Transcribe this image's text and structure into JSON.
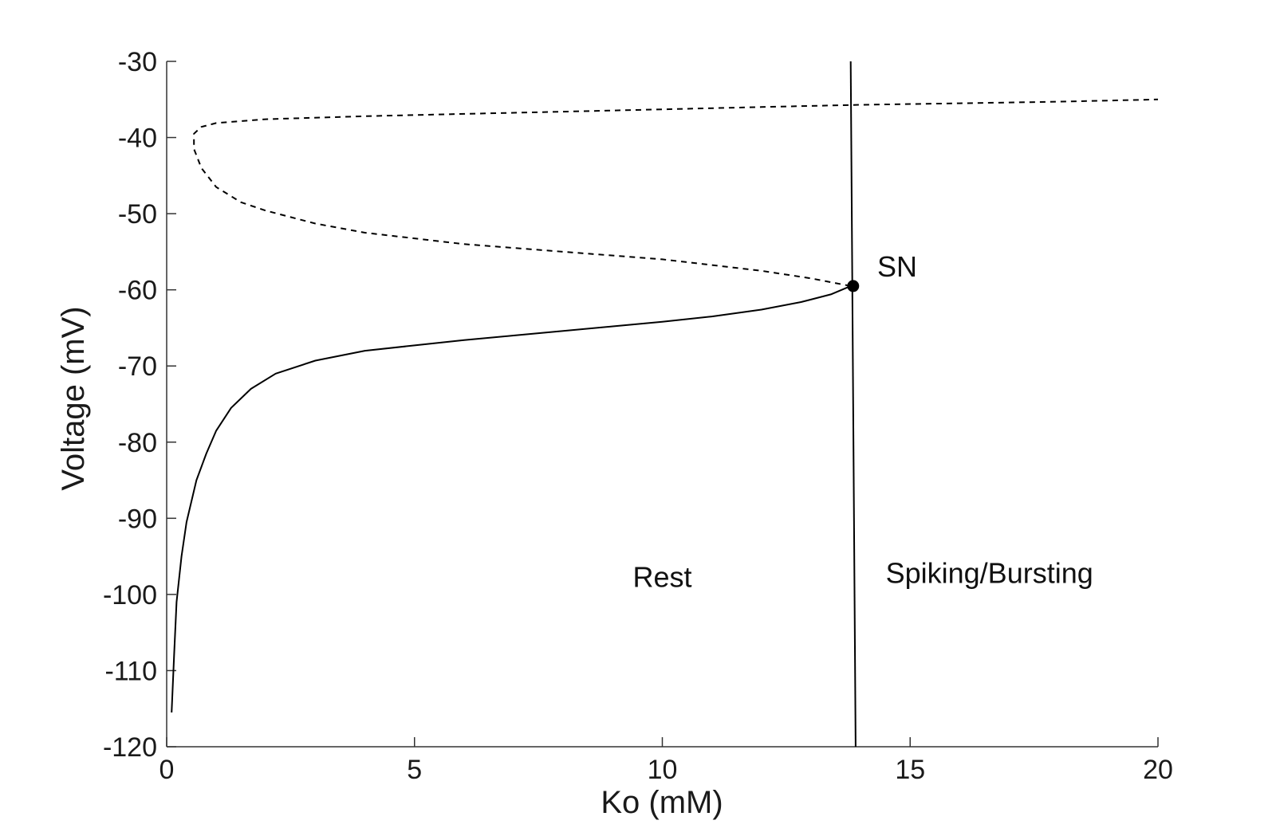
{
  "chart_data": {
    "type": "line",
    "xlabel": "Ko (mM)",
    "ylabel": "Voltage (mV)",
    "xlim": [
      0,
      20
    ],
    "ylim": [
      -120,
      -30
    ],
    "xticks": [
      0,
      5,
      10,
      15,
      20
    ],
    "yticks": [
      -30,
      -40,
      -50,
      -60,
      -70,
      -80,
      -90,
      -100,
      -110,
      -120
    ],
    "grid": false,
    "colors": {
      "line": "#000000",
      "axis": "#333333",
      "text": "#1a1a1a"
    },
    "series": [
      {
        "style": "solid",
        "points": [
          [
            0.1,
            -115.5
          ],
          [
            0.15,
            -108
          ],
          [
            0.2,
            -101
          ],
          [
            0.3,
            -95
          ],
          [
            0.4,
            -90.5
          ],
          [
            0.6,
            -85
          ],
          [
            0.8,
            -81.5
          ],
          [
            1.0,
            -78.5
          ],
          [
            1.3,
            -75.5
          ],
          [
            1.7,
            -73
          ],
          [
            2.2,
            -71
          ],
          [
            3,
            -69.3
          ],
          [
            4,
            -68
          ],
          [
            5,
            -67.3
          ],
          [
            6,
            -66.6
          ],
          [
            7,
            -66
          ],
          [
            8,
            -65.4
          ],
          [
            9,
            -64.8
          ],
          [
            10,
            -64.2
          ],
          [
            11,
            -63.5
          ],
          [
            12,
            -62.6
          ],
          [
            12.8,
            -61.6
          ],
          [
            13.4,
            -60.6
          ],
          [
            13.8,
            -59.5
          ]
        ]
      },
      {
        "style": "dashed",
        "points": [
          [
            13.8,
            -59.5
          ],
          [
            13.0,
            -58.5
          ],
          [
            12,
            -57.5
          ],
          [
            10,
            -56
          ],
          [
            8,
            -55
          ],
          [
            6,
            -54
          ],
          [
            4,
            -52.5
          ],
          [
            3,
            -51.3
          ],
          [
            2,
            -49.6
          ],
          [
            1.5,
            -48.5
          ],
          [
            1.0,
            -46.5
          ],
          [
            0.7,
            -44
          ],
          [
            0.55,
            -41.5
          ],
          [
            0.55,
            -39.5
          ],
          [
            0.7,
            -38.6
          ],
          [
            1.0,
            -38.1
          ],
          [
            2,
            -37.6
          ],
          [
            4,
            -37.2
          ],
          [
            6,
            -36.9
          ],
          [
            8,
            -36.6
          ],
          [
            10,
            -36.3
          ],
          [
            12,
            -36
          ],
          [
            14,
            -35.7
          ],
          [
            16,
            -35.5
          ],
          [
            18,
            -35.3
          ],
          [
            20,
            -35
          ]
        ]
      },
      {
        "style": "solid",
        "points": [
          [
            13.8,
            -30
          ],
          [
            13.9,
            -120
          ]
        ]
      }
    ],
    "marker": {
      "label": "SN",
      "x": 13.85,
      "y": -59.5
    },
    "annotations": [
      {
        "text": "Rest",
        "x": 10,
        "y": -99
      },
      {
        "text": "Spiking/Bursting",
        "x": 16.6,
        "y": -98.5
      }
    ]
  }
}
